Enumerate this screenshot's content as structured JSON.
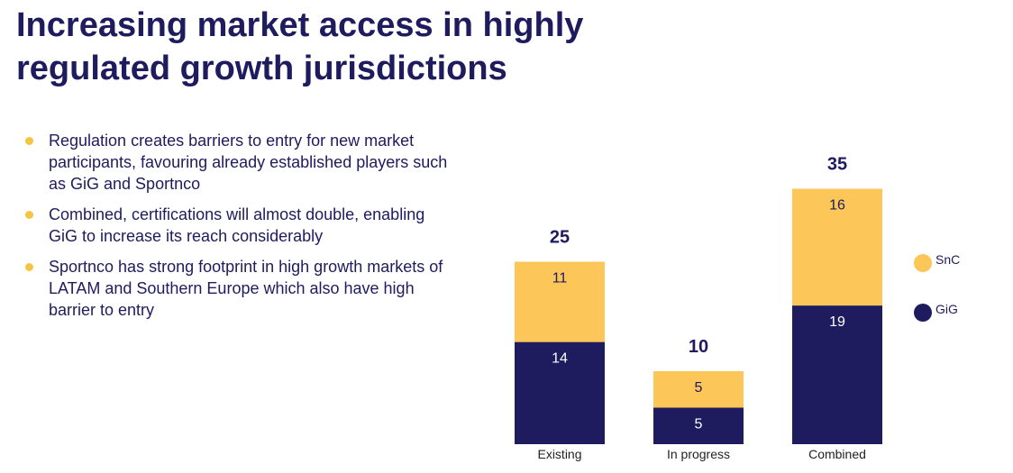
{
  "title": "Increasing market access in highly regulated growth jurisdictions",
  "bullets": [
    "Regulation creates barriers to entry for new market participants, favouring already established players such as GiG and Sportnco",
    "Combined, certifications will almost double, enabling GiG to increase its reach considerably",
    "Sportnco has strong footprint in high growth markets of LATAM and Southern Europe which also have high barrier to entry"
  ],
  "colors": {
    "navy": "#1e1b5e",
    "yellow": "#fcc659",
    "bullet": "#f5c445"
  },
  "chart_data": {
    "type": "bar",
    "stacked": true,
    "categories": [
      "Existing",
      "In progress",
      "Combined"
    ],
    "series": [
      {
        "name": "GiG",
        "values": [
          14,
          5,
          19
        ],
        "color": "#1e1b5e"
      },
      {
        "name": "SnC",
        "values": [
          11,
          5,
          16
        ],
        "color": "#fcc659"
      }
    ],
    "totals": [
      25,
      10,
      35
    ],
    "legend": [
      "SnC",
      "GiG"
    ],
    "legend_position": "right",
    "ylim": [
      0,
      40
    ],
    "grid": false,
    "title": "",
    "xlabel": "",
    "ylabel": ""
  }
}
